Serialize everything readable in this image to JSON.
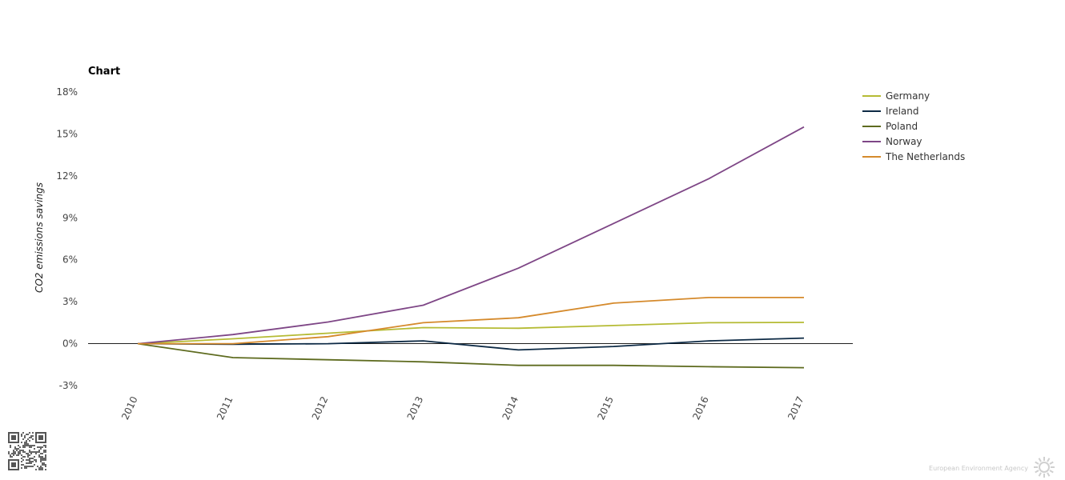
{
  "chart_data": {
    "type": "line",
    "title": "Chart",
    "xlabel": "",
    "ylabel": "CO2 emissions savings",
    "x": [
      "2010",
      "2011",
      "2012",
      "2013",
      "2014",
      "2015",
      "2016",
      "2017"
    ],
    "ylim": [
      -3,
      18
    ],
    "yticks": [
      -3,
      0,
      3,
      6,
      9,
      12,
      15,
      18
    ],
    "ytick_labels": [
      "-3%",
      "0%",
      "3%",
      "6%",
      "9%",
      "12%",
      "15%",
      "18%"
    ],
    "grid": false,
    "legend_position": "right",
    "series": [
      {
        "name": "Germany",
        "color": "#b5bb34",
        "values": [
          0,
          0.35,
          0.75,
          1.15,
          1.1,
          1.3,
          1.5,
          1.52
        ]
      },
      {
        "name": "Ireland",
        "color": "#0d2a45",
        "values": [
          0,
          -0.05,
          0,
          0.2,
          -0.45,
          -0.2,
          0.2,
          0.4
        ]
      },
      {
        "name": "Poland",
        "color": "#5e6b1f",
        "values": [
          0,
          -1.0,
          -1.15,
          -1.3,
          -1.55,
          -1.55,
          -1.65,
          -1.72
        ]
      },
      {
        "name": "Norway",
        "color": "#7e4686",
        "values": [
          0,
          0.65,
          1.55,
          2.75,
          5.4,
          8.6,
          11.8,
          15.5
        ]
      },
      {
        "name": "The Netherlands",
        "color": "#d58a2c",
        "values": [
          0,
          0,
          0.5,
          1.5,
          1.85,
          2.9,
          3.3,
          3.3
        ]
      }
    ]
  },
  "branding": {
    "publisher": "European Environment Agency",
    "qr_icon": "qr-code-icon",
    "logo_icon": "eea-sun-icon"
  }
}
